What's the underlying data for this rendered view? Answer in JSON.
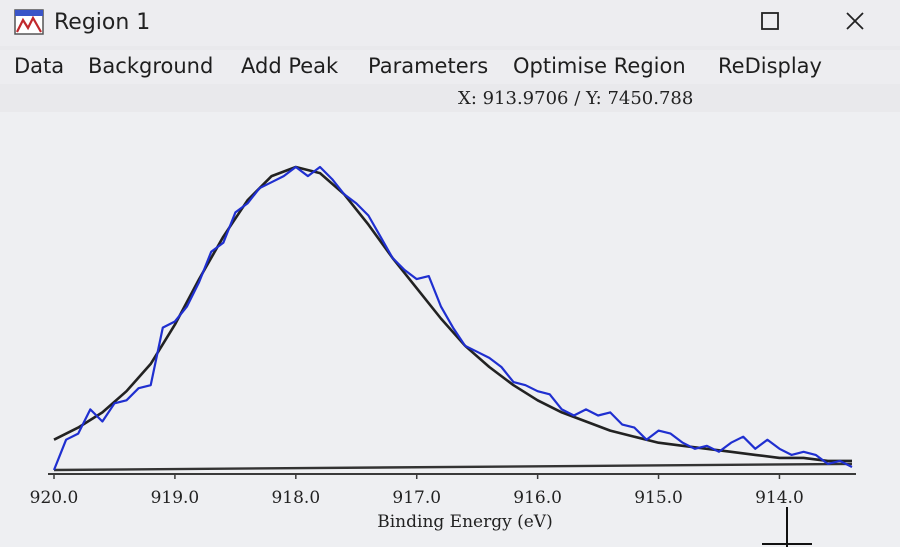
{
  "window": {
    "title": "Region 1",
    "icon": "xps-app-icon",
    "maximize_icon": "maximize-icon",
    "close_icon": "close-icon"
  },
  "menu": {
    "items": [
      "Data",
      "Background",
      "Add Peak",
      "Parameters",
      "Optimise Region",
      "ReDisplay"
    ]
  },
  "readout": "X: 913.9706 / Y: 7450.788",
  "colors": {
    "data": "#1f2fd0",
    "fit": "#222222",
    "background": "#333333"
  },
  "chart_data": {
    "type": "line",
    "xlabel": "Binding Energy (eV)",
    "ylabel": "",
    "xlim": [
      920.0,
      913.4
    ],
    "ylim": [
      0,
      1
    ],
    "x_axis_reversed": true,
    "tick_labels": [
      "920.0",
      "919.0",
      "918.0",
      "917.0",
      "916.0",
      "915.0",
      "914.0"
    ],
    "ticks": [
      920.0,
      919.0,
      918.0,
      917.0,
      916.0,
      915.0,
      914.0
    ],
    "series": [
      {
        "role": "data",
        "x": [
          920.0,
          919.9,
          919.8,
          919.7,
          919.6,
          919.5,
          919.4,
          919.3,
          919.2,
          919.1,
          919.0,
          918.9,
          918.8,
          918.7,
          918.6,
          918.5,
          918.4,
          918.3,
          918.2,
          918.1,
          918.0,
          917.9,
          917.8,
          917.7,
          917.6,
          917.5,
          917.4,
          917.3,
          917.2,
          917.1,
          917.0,
          916.9,
          916.8,
          916.7,
          916.6,
          916.5,
          916.4,
          916.3,
          916.2,
          916.1,
          916.0,
          915.9,
          915.8,
          915.7,
          915.6,
          915.5,
          915.4,
          915.3,
          915.2,
          915.1,
          915.0,
          914.9,
          914.8,
          914.7,
          914.6,
          914.5,
          914.4,
          914.3,
          914.2,
          914.1,
          914.0,
          913.9,
          913.8,
          913.7,
          913.6,
          913.5,
          913.4
        ],
        "y": [
          0.0,
          0.1,
          0.12,
          0.2,
          0.16,
          0.22,
          0.23,
          0.27,
          0.28,
          0.47,
          0.49,
          0.54,
          0.62,
          0.72,
          0.75,
          0.85,
          0.88,
          0.93,
          0.95,
          0.97,
          1.0,
          0.97,
          1.0,
          0.96,
          0.91,
          0.88,
          0.84,
          0.77,
          0.7,
          0.66,
          0.63,
          0.64,
          0.54,
          0.47,
          0.41,
          0.39,
          0.37,
          0.34,
          0.29,
          0.28,
          0.26,
          0.25,
          0.2,
          0.18,
          0.2,
          0.18,
          0.19,
          0.15,
          0.14,
          0.1,
          0.13,
          0.12,
          0.09,
          0.07,
          0.08,
          0.06,
          0.09,
          0.11,
          0.07,
          0.1,
          0.07,
          0.05,
          0.06,
          0.05,
          0.02,
          0.03,
          0.01
        ]
      },
      {
        "role": "fit",
        "x": [
          920.0,
          919.8,
          919.6,
          919.4,
          919.2,
          919.0,
          918.8,
          918.6,
          918.4,
          918.2,
          918.0,
          917.8,
          917.6,
          917.4,
          917.2,
          917.0,
          916.8,
          916.6,
          916.4,
          916.2,
          916.0,
          915.8,
          915.6,
          915.4,
          915.2,
          915.0,
          914.8,
          914.6,
          914.4,
          914.2,
          914.0,
          913.8,
          913.6,
          913.4
        ],
        "y": [
          0.1,
          0.14,
          0.19,
          0.26,
          0.35,
          0.48,
          0.63,
          0.77,
          0.89,
          0.97,
          1.0,
          0.98,
          0.91,
          0.81,
          0.7,
          0.6,
          0.5,
          0.41,
          0.34,
          0.28,
          0.23,
          0.19,
          0.16,
          0.13,
          0.11,
          0.09,
          0.08,
          0.07,
          0.06,
          0.05,
          0.04,
          0.04,
          0.03,
          0.03
        ]
      },
      {
        "role": "background",
        "x": [
          920.0,
          913.4
        ],
        "y": [
          0.0,
          0.02
        ]
      }
    ]
  }
}
